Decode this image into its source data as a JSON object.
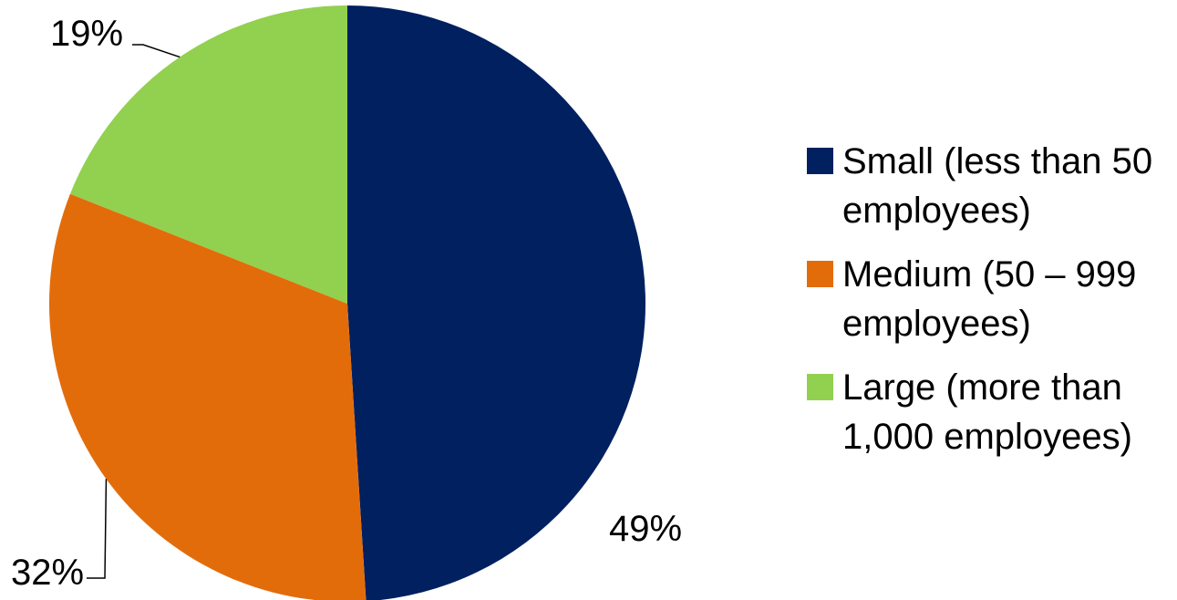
{
  "chart_data": {
    "type": "pie",
    "slices": [
      {
        "label": "Small (less than 50 employees)",
        "value": 49,
        "display": "49%",
        "color": "#002060"
      },
      {
        "label": "Medium (50 – 999 employees)",
        "value": 32,
        "display": "32%",
        "color": "#E36C0A"
      },
      {
        "label": "Large (more than 1,000 employees)",
        "value": 19,
        "display": "19%",
        "color": "#92D050"
      }
    ],
    "start_angle": "12 o'clock",
    "direction": "clockwise",
    "legend_position": "right"
  }
}
